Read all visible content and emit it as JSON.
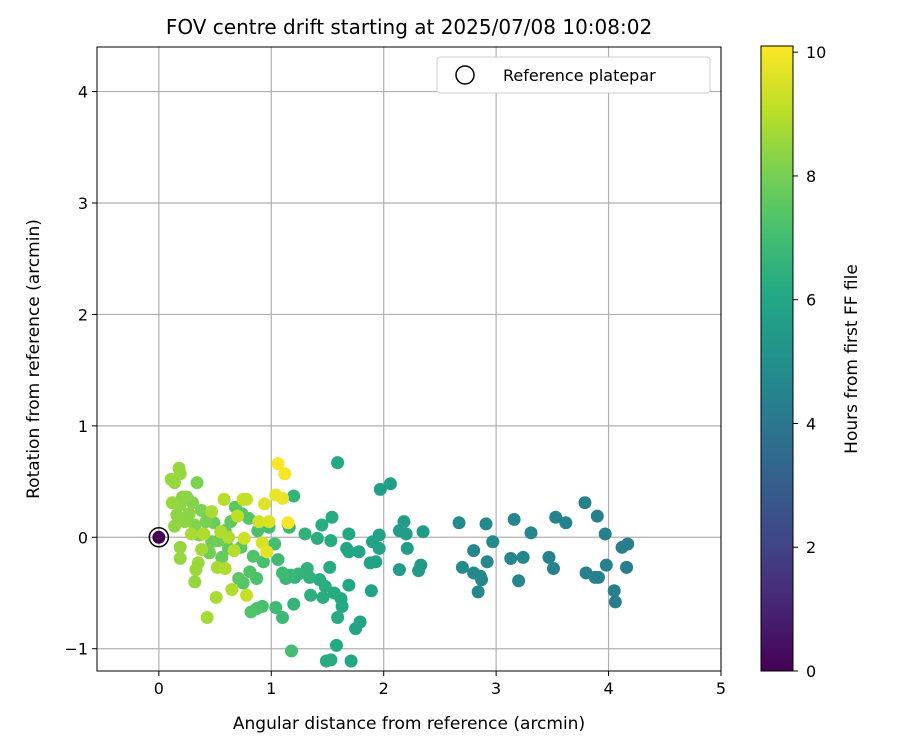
{
  "chart_data": {
    "type": "scatter",
    "title": "FOV centre drift starting at 2025/07/08 10:08:02",
    "xlabel": "Angular distance from reference (arcmin)",
    "ylabel": "Rotation from reference (arcmin)",
    "xlim": [
      -0.55,
      5.0
    ],
    "ylim": [
      -1.2,
      4.4
    ],
    "xticks": [
      0,
      1,
      2,
      3,
      4,
      5
    ],
    "yticks": [
      -1,
      0,
      1,
      2,
      3,
      4
    ],
    "grid": true,
    "legend": {
      "position": "top-right",
      "entries": [
        "Reference platepar"
      ]
    },
    "reference_point": {
      "x": 0,
      "y": 0
    },
    "colorbar": {
      "label": "Hours from first FF file",
      "min": 0,
      "max": 10.1,
      "ticks": [
        0,
        2,
        4,
        6,
        8,
        10
      ],
      "colormap": "viridis"
    },
    "series": [
      {
        "points": [
          {
            "x": 0,
            "y": 0,
            "c": 0
          },
          {
            "x": 4.17,
            "y": -0.06,
            "c": 4.3
          },
          {
            "x": 4.12,
            "y": -0.09,
            "c": 4.3
          },
          {
            "x": 4.16,
            "y": -0.27,
            "c": 4.3
          },
          {
            "x": 4.06,
            "y": -0.58,
            "c": 4.3
          },
          {
            "x": 4.05,
            "y": -0.48,
            "c": 4.3
          },
          {
            "x": 3.97,
            "y": 0.03,
            "c": 4.4
          },
          {
            "x": 3.98,
            "y": -0.25,
            "c": 4.4
          },
          {
            "x": 3.88,
            "y": -0.36,
            "c": 4.4
          },
          {
            "x": 3.9,
            "y": 0.19,
            "c": 4.4
          },
          {
            "x": 3.79,
            "y": 0.31,
            "c": 4.4
          },
          {
            "x": 3.8,
            "y": -0.32,
            "c": 4.4
          },
          {
            "x": 3.91,
            "y": -0.36,
            "c": 4.4
          },
          {
            "x": 3.53,
            "y": 0.18,
            "c": 4.5
          },
          {
            "x": 3.62,
            "y": 0.13,
            "c": 4.5
          },
          {
            "x": 3.47,
            "y": -0.18,
            "c": 4.5
          },
          {
            "x": 3.51,
            "y": -0.28,
            "c": 4.5
          },
          {
            "x": 3.31,
            "y": 0.04,
            "c": 4.6
          },
          {
            "x": 3.16,
            "y": 0.16,
            "c": 4.6
          },
          {
            "x": 3.24,
            "y": -0.18,
            "c": 4.6
          },
          {
            "x": 3.13,
            "y": -0.19,
            "c": 4.6
          },
          {
            "x": 3.2,
            "y": -0.39,
            "c": 4.6
          },
          {
            "x": 2.97,
            "y": -0.04,
            "c": 4.7
          },
          {
            "x": 2.91,
            "y": 0.12,
            "c": 4.7
          },
          {
            "x": 2.92,
            "y": -0.22,
            "c": 4.7
          },
          {
            "x": 2.86,
            "y": -0.35,
            "c": 4.7
          },
          {
            "x": 2.8,
            "y": -0.32,
            "c": 4.7
          },
          {
            "x": 2.87,
            "y": -0.38,
            "c": 4.7
          },
          {
            "x": 2.8,
            "y": -0.12,
            "c": 4.7
          },
          {
            "x": 2.84,
            "y": -0.49,
            "c": 4.7
          },
          {
            "x": 2.7,
            "y": -0.27,
            "c": 4.8
          },
          {
            "x": 2.67,
            "y": 0.13,
            "c": 4.8
          },
          {
            "x": 2.35,
            "y": 0.05,
            "c": 5.5
          },
          {
            "x": 2.33,
            "y": -0.25,
            "c": 5.5
          },
          {
            "x": 2.31,
            "y": -0.3,
            "c": 5.5
          },
          {
            "x": 2.18,
            "y": 0.14,
            "c": 5.6
          },
          {
            "x": 2.21,
            "y": -0.1,
            "c": 5.6
          },
          {
            "x": 2.14,
            "y": 0.06,
            "c": 5.6
          },
          {
            "x": 2.2,
            "y": 0.03,
            "c": 5.6
          },
          {
            "x": 2.14,
            "y": -0.29,
            "c": 5.6
          },
          {
            "x": 2.06,
            "y": 0.48,
            "c": 5.7
          },
          {
            "x": 1.97,
            "y": 0.43,
            "c": 5.7
          },
          {
            "x": 1.96,
            "y": 0.02,
            "c": 5.8
          },
          {
            "x": 1.96,
            "y": -0.1,
            "c": 5.8
          },
          {
            "x": 1.9,
            "y": -0.04,
            "c": 5.8
          },
          {
            "x": 1.93,
            "y": -0.22,
            "c": 5.8
          },
          {
            "x": 1.88,
            "y": -0.23,
            "c": 5.8
          },
          {
            "x": 1.89,
            "y": -0.48,
            "c": 5.8
          },
          {
            "x": 1.78,
            "y": -0.13,
            "c": 5.9
          },
          {
            "x": 1.79,
            "y": -0.76,
            "c": 5.9
          },
          {
            "x": 1.75,
            "y": -0.82,
            "c": 5.9
          },
          {
            "x": 1.69,
            "y": 0.03,
            "c": 6.0
          },
          {
            "x": 1.69,
            "y": -0.13,
            "c": 6.0
          },
          {
            "x": 1.69,
            "y": -0.43,
            "c": 6.0
          },
          {
            "x": 1.71,
            "y": -1.11,
            "c": 6.0
          },
          {
            "x": 1.67,
            "y": -0.1,
            "c": 6.0
          },
          {
            "x": 1.62,
            "y": -0.55,
            "c": 6.1
          },
          {
            "x": 1.63,
            "y": -0.62,
            "c": 6.1
          },
          {
            "x": 1.58,
            "y": -0.97,
            "c": 6.1
          },
          {
            "x": 1.59,
            "y": 0.67,
            "c": 6.1
          },
          {
            "x": 1.54,
            "y": 0.18,
            "c": 6.2
          },
          {
            "x": 1.53,
            "y": -0.03,
            "c": 6.2
          },
          {
            "x": 1.52,
            "y": -0.27,
            "c": 6.2
          },
          {
            "x": 1.53,
            "y": -1.1,
            "c": 6.2
          },
          {
            "x": 1.49,
            "y": -1.11,
            "c": 6.2
          },
          {
            "x": 1.56,
            "y": -0.5,
            "c": 6.2
          },
          {
            "x": 1.48,
            "y": -0.44,
            "c": 6.3
          },
          {
            "x": 1.46,
            "y": -0.54,
            "c": 6.3
          },
          {
            "x": 1.45,
            "y": 0.11,
            "c": 6.3
          },
          {
            "x": 1.41,
            "y": -0.01,
            "c": 6.3
          },
          {
            "x": 1.43,
            "y": -0.38,
            "c": 6.3
          },
          {
            "x": 1.59,
            "y": -0.72,
            "c": 6.2
          },
          {
            "x": 1.35,
            "y": -0.52,
            "c": 6.4
          },
          {
            "x": 1.32,
            "y": -0.28,
            "c": 6.5
          },
          {
            "x": 1.34,
            "y": -0.36,
            "c": 6.5
          },
          {
            "x": 1.3,
            "y": 0.03,
            "c": 6.5
          },
          {
            "x": 1.24,
            "y": -0.33,
            "c": 6.6
          },
          {
            "x": 1.2,
            "y": -0.6,
            "c": 6.6
          },
          {
            "x": 1.21,
            "y": -0.36,
            "c": 6.6
          },
          {
            "x": 1.2,
            "y": 0.37,
            "c": 6.6
          },
          {
            "x": 1.16,
            "y": 0.09,
            "c": 6.7
          },
          {
            "x": 1.17,
            "y": -0.34,
            "c": 6.7
          },
          {
            "x": 1.13,
            "y": -0.37,
            "c": 6.7
          },
          {
            "x": 1.18,
            "y": -1.02,
            "c": 7.0
          },
          {
            "x": 1.15,
            "y": 0.12,
            "c": 6.7
          },
          {
            "x": 1.1,
            "y": -0.72,
            "c": 6.8
          },
          {
            "x": 1.04,
            "y": -0.63,
            "c": 6.9
          },
          {
            "x": 1.06,
            "y": -0.2,
            "c": 6.9
          },
          {
            "x": 1.1,
            "y": -0.32,
            "c": 6.9
          },
          {
            "x": 1.03,
            "y": -0.06,
            "c": 7.0
          },
          {
            "x": 0.98,
            "y": 0.09,
            "c": 7.0
          },
          {
            "x": 0.93,
            "y": -0.22,
            "c": 7.1
          },
          {
            "x": 0.92,
            "y": -0.62,
            "c": 7.1
          },
          {
            "x": 0.87,
            "y": -0.64,
            "c": 7.2
          },
          {
            "x": 0.87,
            "y": -0.37,
            "c": 7.2
          },
          {
            "x": 0.82,
            "y": -0.67,
            "c": 7.3
          },
          {
            "x": 0.81,
            "y": -0.31,
            "c": 7.3
          },
          {
            "x": 0.84,
            "y": -0.17,
            "c": 7.3
          },
          {
            "x": 0.88,
            "y": 0.06,
            "c": 7.2
          },
          {
            "x": 0.8,
            "y": 0.17,
            "c": 7.4
          },
          {
            "x": 0.75,
            "y": -0.41,
            "c": 7.4
          },
          {
            "x": 0.74,
            "y": 0.21,
            "c": 7.4
          },
          {
            "x": 0.73,
            "y": -0.09,
            "c": 7.5
          },
          {
            "x": 0.71,
            "y": -0.37,
            "c": 7.5
          },
          {
            "x": 0.68,
            "y": 0.27,
            "c": 7.5
          },
          {
            "x": 0.64,
            "y": 0.14,
            "c": 7.6
          },
          {
            "x": 0.62,
            "y": -0.1,
            "c": 7.6
          },
          {
            "x": 0.59,
            "y": 0.06,
            "c": 7.7
          },
          {
            "x": 0.56,
            "y": -0.18,
            "c": 7.7
          },
          {
            "x": 0.53,
            "y": -0.03,
            "c": 7.8
          },
          {
            "x": 0.49,
            "y": 0.13,
            "c": 7.8
          },
          {
            "x": 0.47,
            "y": -0.04,
            "c": 7.9
          },
          {
            "x": 0.45,
            "y": -0.14,
            "c": 7.9
          },
          {
            "x": 0.42,
            "y": 0.14,
            "c": 8.0
          },
          {
            "x": 0.38,
            "y": 0.24,
            "c": 8.1
          },
          {
            "x": 0.36,
            "y": 0.02,
            "c": 8.1
          },
          {
            "x": 0.34,
            "y": 0.49,
            "c": 8.1
          },
          {
            "x": 0.32,
            "y": 0.11,
            "c": 8.2
          },
          {
            "x": 0.3,
            "y": 0.31,
            "c": 8.2
          },
          {
            "x": 0.27,
            "y": 0.21,
            "c": 8.3
          },
          {
            "x": 0.25,
            "y": 0.36,
            "c": 8.3
          },
          {
            "x": 0.23,
            "y": 0.14,
            "c": 8.4
          },
          {
            "x": 0.21,
            "y": 0.36,
            "c": 8.4
          },
          {
            "x": 0.19,
            "y": 0.29,
            "c": 8.4
          },
          {
            "x": 0.18,
            "y": 0.62,
            "c": 8.5
          },
          {
            "x": 0.19,
            "y": 0.57,
            "c": 8.5
          },
          {
            "x": 0.14,
            "y": 0.49,
            "c": 8.5
          },
          {
            "x": 0.11,
            "y": 0.52,
            "c": 8.5
          },
          {
            "x": 0.12,
            "y": 0.31,
            "c": 8.5
          },
          {
            "x": 0.16,
            "y": 0.2,
            "c": 8.4
          },
          {
            "x": 0.14,
            "y": 0.1,
            "c": 8.4
          },
          {
            "x": 0.19,
            "y": -0.19,
            "c": 8.5
          },
          {
            "x": 0.19,
            "y": -0.09,
            "c": 8.5
          },
          {
            "x": 0.32,
            "y": -0.4,
            "c": 8.5
          },
          {
            "x": 0.33,
            "y": -0.29,
            "c": 8.6
          },
          {
            "x": 0.35,
            "y": -0.23,
            "c": 8.6
          },
          {
            "x": 0.43,
            "y": -0.72,
            "c": 8.7
          },
          {
            "x": 0.38,
            "y": -0.11,
            "c": 8.7
          },
          {
            "x": 0.51,
            "y": -0.54,
            "c": 8.8
          },
          {
            "x": 0.52,
            "y": -0.27,
            "c": 8.8
          },
          {
            "x": 0.59,
            "y": -0.28,
            "c": 8.9
          },
          {
            "x": 0.62,
            "y": 0.0,
            "c": 8.9
          },
          {
            "x": 0.65,
            "y": -0.47,
            "c": 8.9
          },
          {
            "x": 0.67,
            "y": -0.12,
            "c": 9.0
          },
          {
            "x": 0.58,
            "y": 0.34,
            "c": 9.0
          },
          {
            "x": 0.75,
            "y": 0.34,
            "c": 9.2
          },
          {
            "x": 0.78,
            "y": 0.34,
            "c": 9.2
          },
          {
            "x": 0.78,
            "y": -0.52,
            "c": 9.2
          },
          {
            "x": 0.76,
            "y": -0.01,
            "c": 9.3
          },
          {
            "x": 0.89,
            "y": 0.14,
            "c": 9.4
          },
          {
            "x": 0.92,
            "y": -0.05,
            "c": 9.5
          },
          {
            "x": 0.94,
            "y": 0.3,
            "c": 9.6
          },
          {
            "x": 0.96,
            "y": -0.13,
            "c": 9.7
          },
          {
            "x": 0.98,
            "y": 0.14,
            "c": 9.6
          },
          {
            "x": 1.04,
            "y": 0.38,
            "c": 9.8
          },
          {
            "x": 1.1,
            "y": 0.35,
            "c": 9.8
          },
          {
            "x": 1.06,
            "y": 0.66,
            "c": 10.0
          },
          {
            "x": 1.12,
            "y": 0.57,
            "c": 10.0
          },
          {
            "x": 1.15,
            "y": 0.13,
            "c": 10.0
          },
          {
            "x": 0.4,
            "y": 0.03,
            "c": 8.9
          },
          {
            "x": 0.29,
            "y": 0.03,
            "c": 8.8
          },
          {
            "x": 0.47,
            "y": 0.23,
            "c": 8.8
          },
          {
            "x": 0.55,
            "y": 0.05,
            "c": 8.9
          },
          {
            "x": 0.7,
            "y": 0.19,
            "c": 9.1
          }
        ]
      }
    ]
  }
}
